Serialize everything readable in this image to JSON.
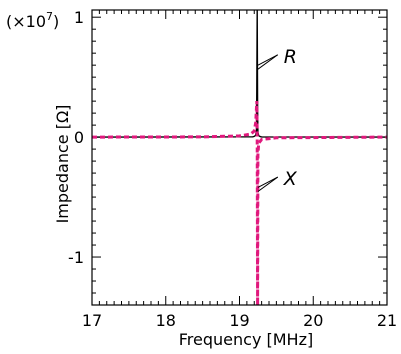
{
  "chart_data": {
    "type": "line",
    "xlabel": "Frequency [MHz]",
    "ylabel": "Impedance [Ω]",
    "y_scale_note": "(×10",
    "y_scale_exponent": "7",
    "y_scale_close": ")",
    "xlim": [
      17,
      21
    ],
    "ylim": [
      -1.4,
      1.06
    ],
    "x_ticks": [
      17,
      18,
      19,
      20,
      21
    ],
    "x_tick_labels": [
      "17",
      "18",
      "19",
      "20",
      "21"
    ],
    "y_ticks": [
      1,
      0,
      -1
    ],
    "y_tick_labels": [
      "1",
      "0",
      "-1"
    ],
    "grid": false,
    "series": [
      {
        "name": "R",
        "style": "solid",
        "color": "#000000",
        "x": [
          17,
          19.18,
          19.2,
          19.22,
          19.23,
          19.235,
          19.24,
          19.245,
          19.25,
          19.26,
          19.28,
          19.3,
          21
        ],
        "y": [
          0,
          0.003,
          0.006,
          0.015,
          0.06,
          0.4,
          1.06,
          0.25,
          0.04,
          0.012,
          0.004,
          0.002,
          0
        ]
      },
      {
        "name": "X",
        "style": "dashed",
        "color": "#e0197d",
        "x": [
          17,
          18.5,
          19.0,
          19.15,
          19.2,
          19.22,
          19.235,
          19.24,
          19.245,
          19.25,
          19.26,
          19.3,
          19.5,
          21
        ],
        "y": [
          0,
          0.002,
          0.01,
          0.025,
          0.05,
          0.12,
          0.3,
          0,
          -1.4,
          -0.15,
          -0.05,
          -0.02,
          -0.006,
          0
        ]
      }
    ],
    "annotations": [
      {
        "label": "R",
        "series": "R",
        "point": [
          19.25,
          0.6
        ],
        "text_pos": [
          19.6,
          0.72
        ]
      },
      {
        "label": "X",
        "series": "X",
        "point": [
          19.25,
          -0.42
        ],
        "text_pos": [
          19.6,
          -0.3
        ]
      }
    ]
  }
}
